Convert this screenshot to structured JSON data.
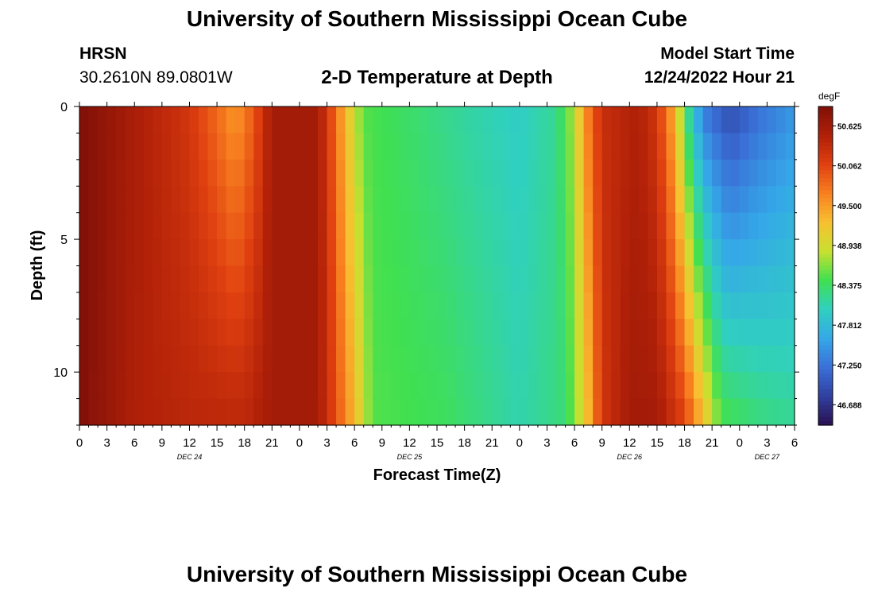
{
  "header": {
    "title": "University of Southern Mississippi Ocean Cube",
    "station_name": "HRSN",
    "station_coords": "30.2610N  89.0801W",
    "subtitle": "2-D Temperature at Depth",
    "model_label": "Model Start Time",
    "model_time": "12/24/2022 Hour 21"
  },
  "footer": {
    "title": "University of Southern Mississippi Ocean Cube"
  },
  "chart_data": {
    "type": "heatmap",
    "title": "2-D Temperature at Depth",
    "xlabel": "Forecast Time(Z)",
    "ylabel": "Depth (ft)",
    "y_range": [
      0,
      12
    ],
    "y_inverted": true,
    "y_ticks": [
      0,
      5,
      10
    ],
    "x_range_hours": [
      0,
      78
    ],
    "x_tick_labels": [
      "0",
      "3",
      "6",
      "9",
      "12",
      "15",
      "18",
      "21",
      "0",
      "3",
      "6",
      "9",
      "12",
      "15",
      "18",
      "21",
      "0",
      "3",
      "6",
      "9",
      "12",
      "15",
      "18",
      "21",
      "0",
      "3",
      "6"
    ],
    "date_labels": [
      {
        "label": "DEC 24",
        "hour": 12
      },
      {
        "label": "DEC 25",
        "hour": 36
      },
      {
        "label": "DEC 26",
        "hour": 60
      },
      {
        "label": "DEC 27",
        "hour": 75
      }
    ],
    "colorbar": {
      "unit": "degF",
      "min": 46.4,
      "max": 50.9,
      "labels": [
        "50.625",
        "50.062",
        "49.500",
        "48.938",
        "48.375",
        "47.812",
        "47.250",
        "46.688"
      ],
      "colors": [
        "#2a1050",
        "#3040a0",
        "#3a70d8",
        "#35a8e8",
        "#30d0c0",
        "#40e050",
        "#c8e030",
        "#f8c030",
        "#f88020",
        "#e04010",
        "#b02008",
        "#801008"
      ]
    },
    "temperature_keyframes_surface": [
      {
        "hour": 0,
        "value": 50.9
      },
      {
        "hour": 6,
        "value": 50.55
      },
      {
        "hour": 12,
        "value": 50.2
      },
      {
        "hour": 15,
        "value": 49.8
      },
      {
        "hour": 17,
        "value": 49.5
      },
      {
        "hour": 19,
        "value": 49.9
      },
      {
        "hour": 21,
        "value": 50.6
      },
      {
        "hour": 26,
        "value": 50.6
      },
      {
        "hour": 27.5,
        "value": 50.0
      },
      {
        "hour": 29,
        "value": 49.3
      },
      {
        "hour": 31,
        "value": 48.5
      },
      {
        "hour": 36,
        "value": 48.35
      },
      {
        "hour": 42,
        "value": 48.15
      },
      {
        "hour": 48,
        "value": 48.0
      },
      {
        "hour": 52,
        "value": 48.2
      },
      {
        "hour": 54,
        "value": 48.8
      },
      {
        "hour": 55,
        "value": 49.5
      },
      {
        "hour": 57,
        "value": 50.3
      },
      {
        "hour": 61,
        "value": 50.5
      },
      {
        "hour": 63,
        "value": 50.2
      },
      {
        "hour": 65,
        "value": 49.3
      },
      {
        "hour": 66,
        "value": 48.4
      },
      {
        "hour": 68,
        "value": 47.3
      },
      {
        "hour": 71,
        "value": 46.9
      },
      {
        "hour": 74,
        "value": 47.2
      },
      {
        "hour": 78,
        "value": 47.5
      }
    ],
    "temperature_keyframes_bottom": [
      {
        "hour": 0,
        "value": 50.9
      },
      {
        "hour": 6,
        "value": 50.5
      },
      {
        "hour": 12,
        "value": 50.4
      },
      {
        "hour": 18,
        "value": 50.4
      },
      {
        "hour": 21,
        "value": 50.6
      },
      {
        "hour": 26,
        "value": 50.6
      },
      {
        "hour": 28,
        "value": 50.0
      },
      {
        "hour": 30,
        "value": 49.3
      },
      {
        "hour": 32,
        "value": 48.5
      },
      {
        "hour": 40,
        "value": 48.4
      },
      {
        "hour": 48,
        "value": 48.1
      },
      {
        "hour": 53,
        "value": 48.3
      },
      {
        "hour": 55,
        "value": 49.0
      },
      {
        "hour": 57,
        "value": 50.2
      },
      {
        "hour": 60,
        "value": 50.6
      },
      {
        "hour": 63,
        "value": 50.6
      },
      {
        "hour": 66,
        "value": 50.1
      },
      {
        "hour": 68,
        "value": 49.3
      },
      {
        "hour": 70,
        "value": 48.5
      },
      {
        "hour": 74,
        "value": 48.3
      },
      {
        "hour": 78,
        "value": 48.2
      }
    ]
  }
}
